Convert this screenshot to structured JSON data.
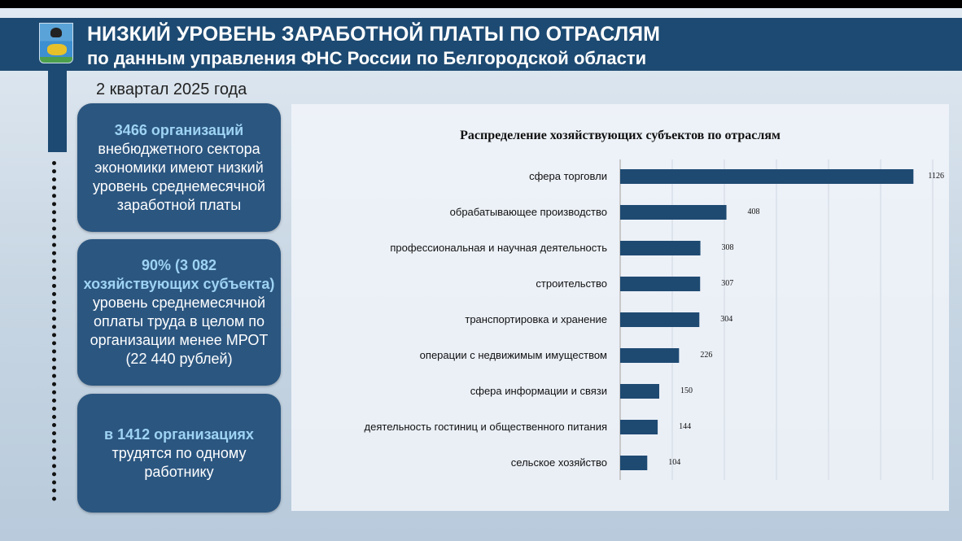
{
  "header": {
    "title": "НИЗКИЙ УРОВЕНЬ ЗАРАБОТНОЙ ПЛАТЫ ПО ОТРАСЛЯМ",
    "subtitle": "по данным управления ФНС России по Белгородской области",
    "logo": "Белгородская область герб"
  },
  "period": "2 квартал 2025 года",
  "cards": [
    {
      "highlight": "3466 организаций",
      "text": "внебюджетного сектора экономики имеют низкий уровень среднемесячной заработной платы"
    },
    {
      "highlight": "90% (3 082 хозяйствующих субъекта)",
      "text": "уровень среднемесячной оплаты труда в целом по организации менее МРОТ (22 440 рублей)"
    },
    {
      "highlight": "в 1412 организациях",
      "text": "трудятся по одному работнику"
    }
  ],
  "colors": {
    "bar": "#1e4a72",
    "header": "#1d4a72"
  },
  "chart_data": {
    "type": "bar",
    "orientation": "horizontal",
    "title": "Распределение хозяйствующих субъектов по отраслям",
    "categories": [
      "сфера торговли",
      "обрабатывающее производство",
      "профессиональная и научная деятельность",
      "строительство",
      "транспортировка и хранение",
      "операции с недвижимым имуществом",
      "сфера информации и связи",
      "деятельность гостиниц и общественного питания",
      "сельское хозяйство"
    ],
    "values": [
      1126,
      408,
      308,
      307,
      304,
      226,
      150,
      144,
      104
    ],
    "xlim": [
      0,
      1250
    ],
    "grid": true,
    "grid_step": 200
  }
}
